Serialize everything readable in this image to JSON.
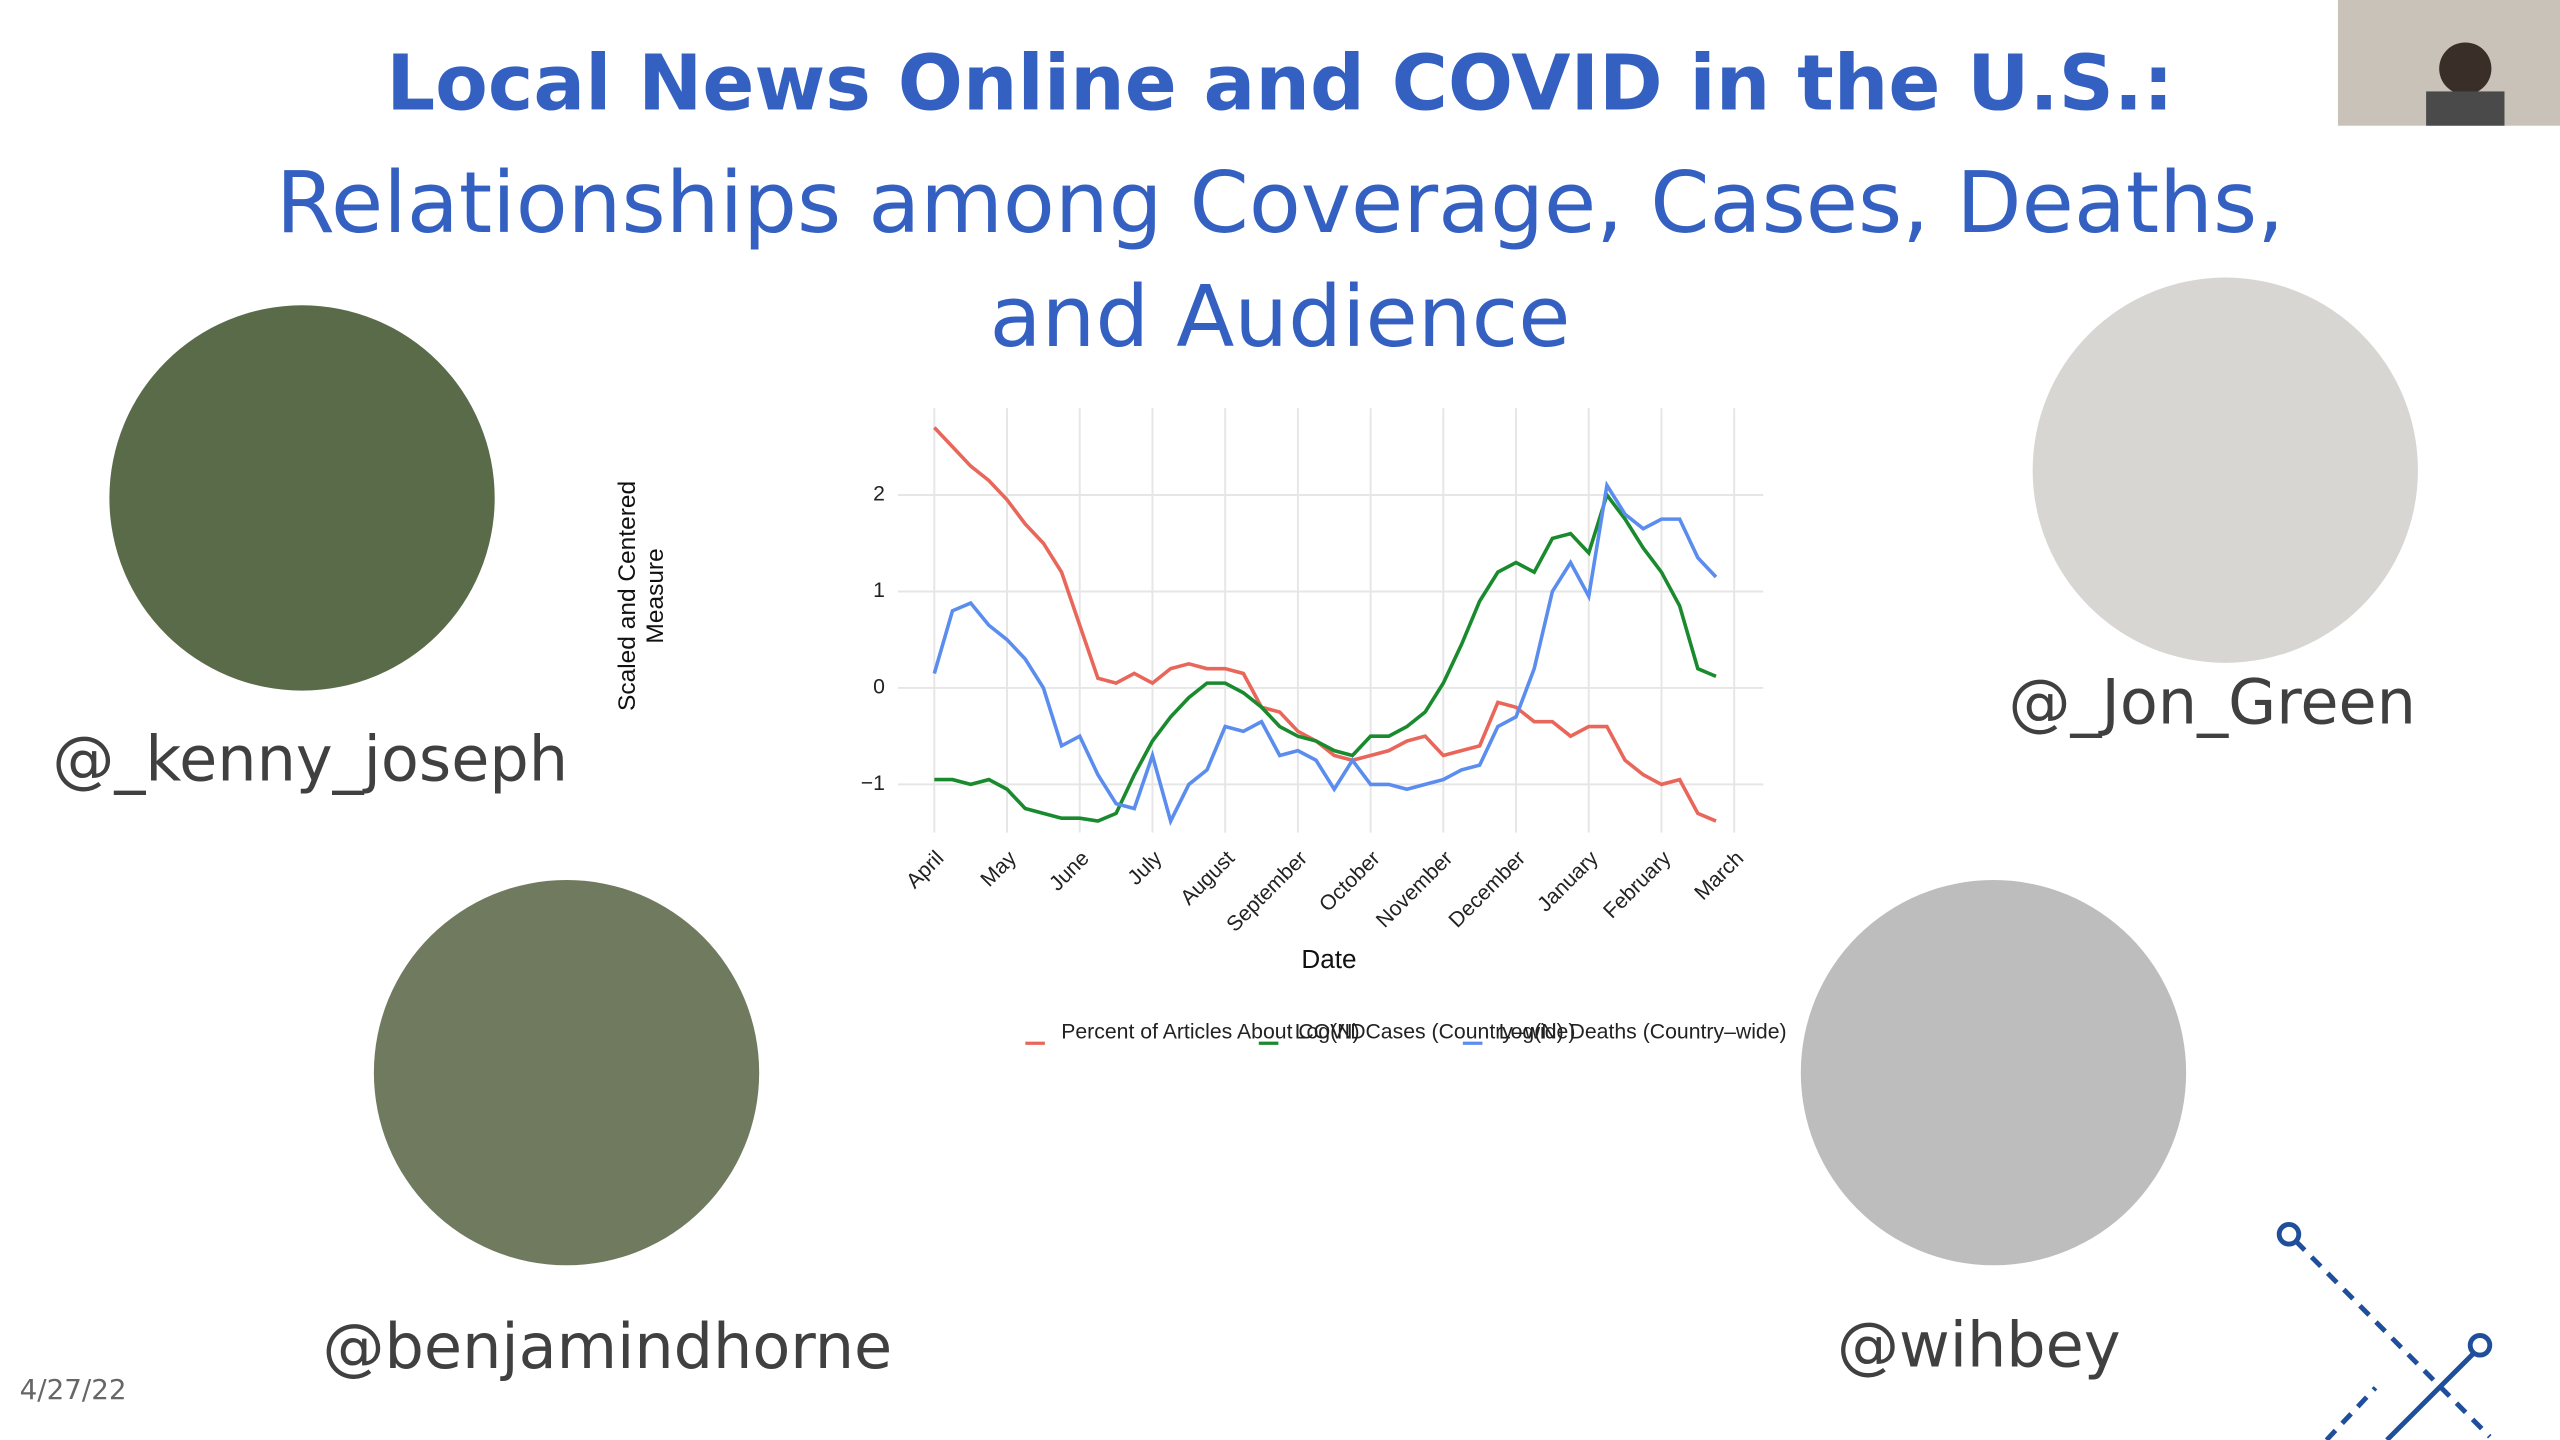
{
  "slide": {
    "title": "Local News Online and COVID in the U.S.:",
    "subtitle": "Relationships among Coverage, Cases, Deaths,\nand Audience",
    "handles": [
      "@_kenny_joseph",
      "@_Jon_Green",
      "@benjamindhorne",
      "@wihbey"
    ],
    "date": "4/27/22"
  },
  "chart_data": {
    "type": "line",
    "x_label": "Date",
    "y_label": "Scaled and Centered\nMeasure",
    "x": [
      0,
      0.25,
      0.5,
      0.75,
      1,
      1.25,
      1.5,
      1.75,
      2,
      2.25,
      2.5,
      2.75,
      3,
      3.25,
      3.5,
      3.75,
      4,
      4.25,
      4.5,
      4.75,
      5,
      5.25,
      5.5,
      5.75,
      6,
      6.25,
      6.5,
      6.75,
      7,
      7.25,
      7.5,
      7.75,
      8,
      8.25,
      8.5,
      8.75,
      9,
      9.25,
      9.5,
      9.75,
      10,
      10.25,
      10.5,
      10.75
    ],
    "xlim": [
      -0.5,
      11.4
    ],
    "xticks": [
      {
        "value": 0,
        "label": "April"
      },
      {
        "value": 1,
        "label": "May"
      },
      {
        "value": 2,
        "label": "June"
      },
      {
        "value": 3,
        "label": "July"
      },
      {
        "value": 4,
        "label": "August"
      },
      {
        "value": 5,
        "label": "September"
      },
      {
        "value": 6,
        "label": "October"
      },
      {
        "value": 7,
        "label": "November"
      },
      {
        "value": 8,
        "label": "December"
      },
      {
        "value": 9,
        "label": "January"
      },
      {
        "value": 10,
        "label": "February"
      },
      {
        "value": 11,
        "label": "March"
      }
    ],
    "ylim": [
      -1.5,
      2.9
    ],
    "yticks": [
      {
        "value": -1,
        "label": "−1"
      },
      0,
      1,
      2
    ],
    "grid": true,
    "legend": "bottom",
    "series": [
      {
        "name": "Percent of Articles\nAbout COVID",
        "color": "#e8675a",
        "values": [
          2.7,
          2.5,
          2.3,
          2.15,
          1.95,
          1.7,
          1.5,
          1.2,
          0.65,
          0.1,
          0.05,
          0.15,
          0.05,
          0.2,
          0.25,
          0.2,
          0.2,
          0.15,
          -0.2,
          -0.25,
          -0.45,
          -0.55,
          -0.7,
          -0.75,
          -0.7,
          -0.65,
          -0.55,
          -0.5,
          -0.7,
          -0.65,
          -0.6,
          -0.15,
          -0.2,
          -0.35,
          -0.35,
          -0.5,
          -0.4,
          -0.4,
          -0.75,
          -0.9,
          -1.0,
          -0.95,
          -1.3,
          -1.38
        ]
      },
      {
        "name": "Log(N) Cases\n(Country–wide)",
        "color": "#1a8a2e",
        "values": [
          -0.95,
          -0.95,
          -1.0,
          -0.95,
          -1.05,
          -1.25,
          -1.3,
          -1.35,
          -1.35,
          -1.38,
          -1.3,
          -0.9,
          -0.55,
          -0.3,
          -0.1,
          0.05,
          0.05,
          -0.05,
          -0.2,
          -0.4,
          -0.5,
          -0.55,
          -0.65,
          -0.7,
          -0.5,
          -0.5,
          -0.4,
          -0.25,
          0.05,
          0.45,
          0.9,
          1.2,
          1.3,
          1.2,
          1.55,
          1.6,
          1.4,
          2.0,
          1.75,
          1.45,
          1.2,
          0.85,
          0.2,
          0.12
        ]
      },
      {
        "name": "Log(N) Deaths\n(Country–wide)",
        "color": "#5b8def",
        "values": [
          0.15,
          0.8,
          0.88,
          0.65,
          0.5,
          0.3,
          0.0,
          -0.6,
          -0.5,
          -0.9,
          -1.2,
          -1.25,
          -0.7,
          -1.38,
          -1.0,
          -0.85,
          -0.4,
          -0.45,
          -0.35,
          -0.7,
          -0.65,
          -0.75,
          -1.05,
          -0.75,
          -1.0,
          -1.0,
          -1.05,
          -1.0,
          -0.95,
          -0.85,
          -0.8,
          -0.4,
          -0.3,
          0.2,
          1.0,
          1.3,
          0.95,
          2.1,
          1.8,
          1.65,
          1.75,
          1.75,
          1.35,
          1.15
        ]
      }
    ]
  }
}
